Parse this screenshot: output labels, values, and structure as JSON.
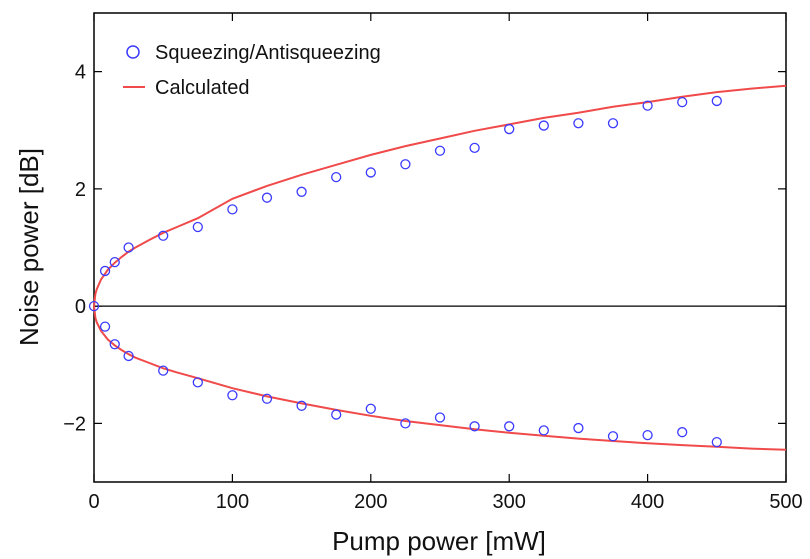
{
  "chart_data": {
    "type": "scatter",
    "xlabel": "Pump power [mW]",
    "ylabel": "Noise power [dB]",
    "xlim": [
      0,
      500
    ],
    "ylim": [
      -3,
      5
    ],
    "xticks": [
      0,
      100,
      200,
      300,
      400,
      500
    ],
    "yticks": [
      -2,
      0,
      2,
      4
    ],
    "xtick_labels": [
      "0",
      "100",
      "200",
      "300",
      "400",
      "500"
    ],
    "ytick_labels": [
      "−2",
      "0",
      "2",
      "4"
    ],
    "grid": false,
    "legend_position": "top-left",
    "series": [
      {
        "name": "Squeezing/Antisqueezing",
        "kind": "marker",
        "color": "#3b3bff",
        "x": [
          0,
          8,
          15,
          25,
          50,
          75,
          100,
          125,
          150,
          175,
          200,
          225,
          250,
          275,
          300,
          325,
          350,
          375,
          400,
          425,
          450,
          8,
          15,
          25,
          50,
          75,
          100,
          125,
          150,
          175,
          200,
          225,
          250,
          275,
          300,
          325,
          350,
          375,
          400,
          425,
          450
        ],
        "y": [
          0.0,
          0.6,
          0.75,
          1.0,
          1.2,
          1.35,
          1.65,
          1.85,
          1.95,
          2.2,
          2.28,
          2.42,
          2.65,
          2.7,
          3.02,
          3.08,
          3.12,
          3.12,
          3.42,
          3.48,
          3.5,
          -0.35,
          -0.65,
          -0.85,
          -1.1,
          -1.3,
          -1.52,
          -1.58,
          -1.7,
          -1.85,
          -1.75,
          -2.0,
          -1.9,
          -2.05,
          -2.05,
          -2.12,
          -2.08,
          -2.22,
          -2.2,
          -2.15,
          -2.32
        ]
      },
      {
        "name": "Calculated",
        "kind": "line",
        "color": "#f04a4a",
        "x": [
          0,
          1,
          2,
          5,
          10,
          15,
          20,
          25,
          30,
          40,
          50,
          60,
          75,
          100,
          125,
          150,
          175,
          200,
          225,
          250,
          275,
          300,
          325,
          350,
          375,
          400,
          425,
          450,
          475,
          500
        ],
        "y_upper": [
          0,
          0.21,
          0.29,
          0.45,
          0.62,
          0.74,
          0.84,
          0.93,
          1.0,
          1.13,
          1.25,
          1.35,
          1.5,
          1.83,
          2.05,
          2.24,
          2.41,
          2.58,
          2.73,
          2.86,
          2.99,
          3.1,
          3.21,
          3.3,
          3.4,
          3.48,
          3.57,
          3.65,
          3.71,
          3.76
        ],
        "y_lower": [
          0,
          -0.2,
          -0.28,
          -0.42,
          -0.57,
          -0.67,
          -0.75,
          -0.82,
          -0.88,
          -0.97,
          -1.06,
          -1.13,
          -1.23,
          -1.4,
          -1.54,
          -1.66,
          -1.77,
          -1.87,
          -1.96,
          -2.03,
          -2.1,
          -2.16,
          -2.21,
          -2.26,
          -2.3,
          -2.34,
          -2.37,
          -2.4,
          -2.43,
          -2.45
        ]
      }
    ],
    "baseline": 0
  }
}
